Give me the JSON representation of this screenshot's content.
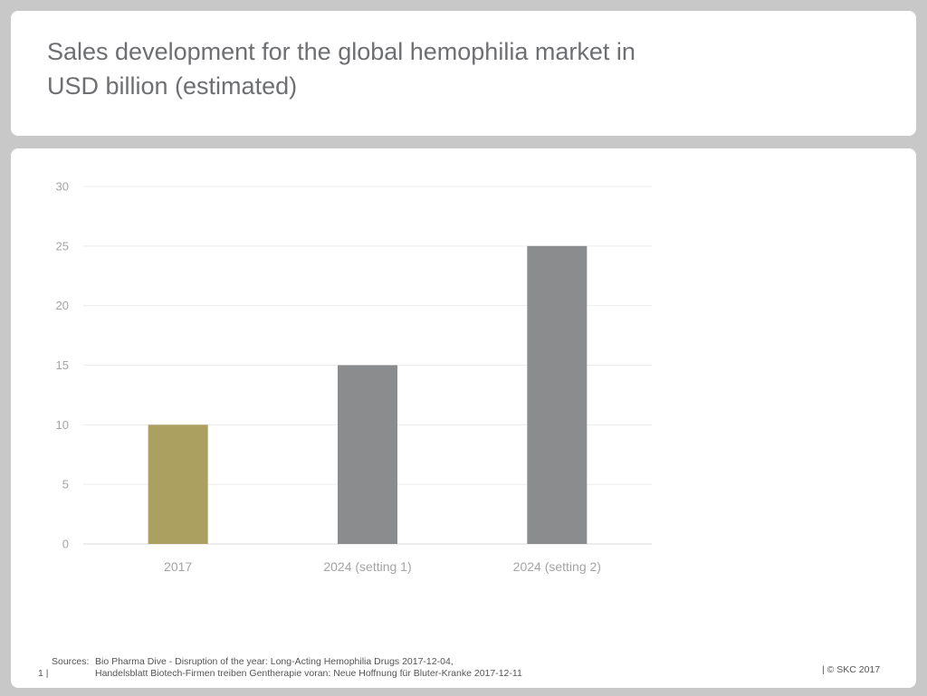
{
  "title": {
    "line1": "Sales development for the global hemophilia market in",
    "line2": "USD billion (estimated)"
  },
  "chart_data": {
    "type": "bar",
    "categories": [
      "2017",
      "2024 (setting 1)",
      "2024 (setting 2)"
    ],
    "values": [
      10,
      15,
      25
    ],
    "colors": [
      "#aca060",
      "#8b8c8e",
      "#8b8c8e"
    ],
    "ylim": [
      0,
      30
    ],
    "yticks": [
      0,
      5,
      10,
      15,
      20,
      25,
      30
    ],
    "grid": true,
    "legend": "none"
  },
  "footer": {
    "page_number": "1 |",
    "sources_label": "Sources:",
    "sources": [
      "Bio Pharma Dive - Disruption of the year: Long-Acting Hemophilia Drugs 2017-12-04,",
      "Handelsblatt Biotech-Firmen treiben Gentherapie voran: Neue Hoffnung für Bluter-Kranke 2017-12-11"
    ],
    "copyright": "| © SKC 2017"
  }
}
